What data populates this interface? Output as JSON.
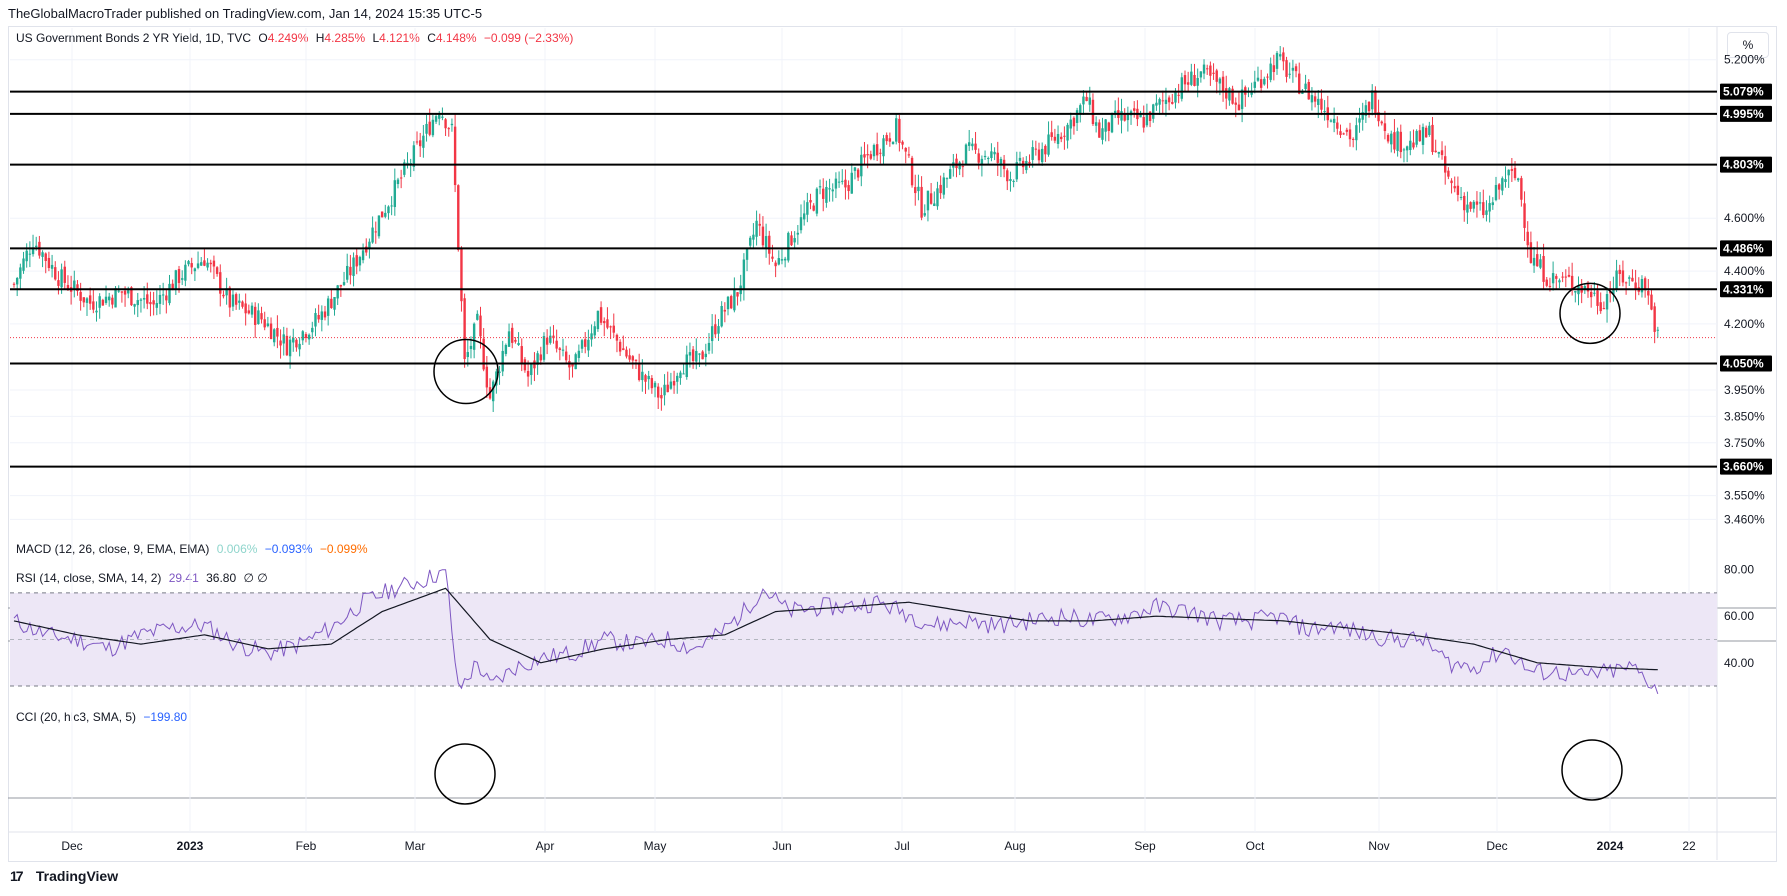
{
  "header": {
    "published": "TheGlobalMacroTrader published on TradingView.com, Jan 14, 2024 15:35 UTC-5"
  },
  "price_legend": {
    "symbol": "US Government Bonds 2 YR Yield, 1D, TVC",
    "o_label": "O",
    "o_value": "4.249%",
    "h_label": "H",
    "h_value": "4.285%",
    "l_label": "L",
    "l_value": "4.121%",
    "c_label": "C",
    "c_value": "4.148%",
    "change": "−0.099 (−2.33%)"
  },
  "scale_toggle": "%",
  "macd_legend": {
    "title": "MACD (12, 26, close, 9, EMA, EMA)",
    "hist": "0.006%",
    "macd": "−0.093%",
    "signal": "−0.099%"
  },
  "rsi_legend": {
    "title": "RSI (14, close, SMA, 14, 2)",
    "rsi": "29.41",
    "ma": "36.80",
    "extra": "∅ ∅"
  },
  "cci_legend": {
    "title": "CCI (20, hlc3, SMA, 5)",
    "value": "−199.80"
  },
  "footer": {
    "brand": "TradingView"
  },
  "colors": {
    "up": "#22ab94",
    "down": "#f23645",
    "rsi": "#7e57c2",
    "rsi_band": "#ede7f6",
    "level": "#000000"
  },
  "chart_data": [
    {
      "type": "candlestick",
      "title": "US Government Bonds 2 YR Yield, 1D, TVC",
      "x_ticks": [
        "Dec",
        "2023",
        "Feb",
        "Mar",
        "Apr",
        "May",
        "Jun",
        "Jul",
        "Aug",
        "Sep",
        "Oct",
        "Nov",
        "Dec",
        "2024",
        "22"
      ],
      "y_ticks": [
        "5.200%",
        "4.600%",
        "4.400%",
        "4.200%",
        "3.950%",
        "3.850%",
        "3.750%",
        "3.550%",
        "3.460%"
      ],
      "ylim": [
        3.42,
        5.32
      ],
      "levels": [
        "5.079%",
        "4.995%",
        "4.803%",
        "4.486%",
        "4.331%",
        "4.050%",
        "3.660%"
      ],
      "level_values": [
        5.079,
        4.995,
        4.803,
        4.486,
        4.331,
        4.05,
        3.66
      ],
      "last_price": 4.148,
      "path_anchors": [
        [
          0,
          4.35
        ],
        [
          6,
          4.52
        ],
        [
          14,
          4.38
        ],
        [
          24,
          4.28
        ],
        [
          34,
          4.32
        ],
        [
          44,
          4.27
        ],
        [
          52,
          4.38
        ],
        [
          60,
          4.45
        ],
        [
          68,
          4.28
        ],
        [
          78,
          4.22
        ],
        [
          86,
          4.12
        ],
        [
          96,
          4.22
        ],
        [
          106,
          4.4
        ],
        [
          116,
          4.62
        ],
        [
          126,
          4.84
        ],
        [
          134,
          5.02
        ],
        [
          138,
          4.93
        ],
        [
          140,
          4.5
        ],
        [
          142,
          4.05
        ],
        [
          146,
          4.2
        ],
        [
          150,
          3.92
        ],
        [
          156,
          4.18
        ],
        [
          162,
          4.0
        ],
        [
          168,
          4.15
        ],
        [
          176,
          4.02
        ],
        [
          184,
          4.24
        ],
        [
          192,
          4.1
        ],
        [
          198,
          4.0
        ],
        [
          204,
          3.92
        ],
        [
          210,
          4.05
        ],
        [
          216,
          4.06
        ],
        [
          222,
          4.22
        ],
        [
          228,
          4.32
        ],
        [
          234,
          4.58
        ],
        [
          240,
          4.42
        ],
        [
          246,
          4.55
        ],
        [
          254,
          4.7
        ],
        [
          262,
          4.72
        ],
        [
          270,
          4.85
        ],
        [
          278,
          4.94
        ],
        [
          282,
          4.8
        ],
        [
          286,
          4.64
        ],
        [
          292,
          4.72
        ],
        [
          300,
          4.85
        ],
        [
          308,
          4.84
        ],
        [
          314,
          4.76
        ],
        [
          320,
          4.82
        ],
        [
          326,
          4.88
        ],
        [
          332,
          4.95
        ],
        [
          338,
          5.05
        ],
        [
          342,
          4.92
        ],
        [
          348,
          4.98
        ],
        [
          356,
          4.97
        ],
        [
          362,
          5.04
        ],
        [
          368,
          5.1
        ],
        [
          374,
          5.15
        ],
        [
          380,
          5.1
        ],
        [
          386,
          5.04
        ],
        [
          392,
          5.12
        ],
        [
          398,
          5.2
        ],
        [
          404,
          5.12
        ],
        [
          410,
          5.05
        ],
        [
          416,
          4.98
        ],
        [
          422,
          4.9
        ],
        [
          428,
          5.06
        ],
        [
          434,
          4.9
        ],
        [
          440,
          4.88
        ],
        [
          446,
          4.92
        ],
        [
          452,
          4.74
        ],
        [
          458,
          4.65
        ],
        [
          464,
          4.62
        ],
        [
          470,
          4.76
        ],
        [
          474,
          4.75
        ],
        [
          478,
          4.45
        ],
        [
          484,
          4.37
        ],
        [
          490,
          4.36
        ],
        [
          496,
          4.33
        ],
        [
          500,
          4.28
        ],
        [
          506,
          4.38
        ],
        [
          510,
          4.36
        ],
        [
          514,
          4.35
        ],
        [
          518,
          4.15
        ]
      ]
    },
    {
      "type": "line",
      "title": "RSI (14, close, SMA, 14, 2)",
      "y_ticks": [
        "80.00",
        "60.00",
        "40.00"
      ],
      "ylim": [
        24,
        82
      ],
      "band": [
        30,
        70
      ],
      "midline": 50,
      "series": [
        {
          "name": "RSI"
        },
        {
          "name": "RSI-based MA"
        }
      ],
      "rsi_anchors": [
        [
          0,
          58
        ],
        [
          10,
          52
        ],
        [
          20,
          50
        ],
        [
          30,
          46
        ],
        [
          40,
          52
        ],
        [
          50,
          55
        ],
        [
          60,
          56
        ],
        [
          70,
          48
        ],
        [
          80,
          44
        ],
        [
          90,
          48
        ],
        [
          100,
          55
        ],
        [
          110,
          66
        ],
        [
          120,
          72
        ],
        [
          130,
          76
        ],
        [
          136,
          80
        ],
        [
          140,
          28
        ],
        [
          146,
          40
        ],
        [
          150,
          30
        ],
        [
          158,
          38
        ],
        [
          166,
          42
        ],
        [
          176,
          44
        ],
        [
          186,
          50
        ],
        [
          196,
          48
        ],
        [
          206,
          50
        ],
        [
          214,
          46
        ],
        [
          222,
          52
        ],
        [
          230,
          62
        ],
        [
          236,
          72
        ],
        [
          244,
          62
        ],
        [
          254,
          64
        ],
        [
          262,
          64
        ],
        [
          272,
          66
        ],
        [
          280,
          62
        ],
        [
          290,
          56
        ],
        [
          300,
          58
        ],
        [
          310,
          56
        ],
        [
          320,
          58
        ],
        [
          330,
          60
        ],
        [
          340,
          58
        ],
        [
          350,
          60
        ],
        [
          360,
          64
        ],
        [
          370,
          62
        ],
        [
          380,
          58
        ],
        [
          390,
          58
        ],
        [
          398,
          60
        ],
        [
          408,
          54
        ],
        [
          416,
          56
        ],
        [
          426,
          52
        ],
        [
          436,
          50
        ],
        [
          444,
          50
        ],
        [
          452,
          40
        ],
        [
          460,
          38
        ],
        [
          470,
          46
        ],
        [
          478,
          36
        ],
        [
          486,
          36
        ],
        [
          494,
          34
        ],
        [
          502,
          36
        ],
        [
          510,
          38
        ],
        [
          518,
          29
        ]
      ],
      "ma_anchors": [
        [
          0,
          58
        ],
        [
          20,
          52
        ],
        [
          40,
          48
        ],
        [
          60,
          52
        ],
        [
          80,
          46
        ],
        [
          100,
          48
        ],
        [
          116,
          62
        ],
        [
          136,
          72
        ],
        [
          150,
          50
        ],
        [
          166,
          40
        ],
        [
          186,
          46
        ],
        [
          206,
          50
        ],
        [
          224,
          52
        ],
        [
          240,
          62
        ],
        [
          262,
          64
        ],
        [
          282,
          66
        ],
        [
          300,
          62
        ],
        [
          320,
          58
        ],
        [
          340,
          58
        ],
        [
          360,
          60
        ],
        [
          380,
          59
        ],
        [
          400,
          58
        ],
        [
          420,
          55
        ],
        [
          440,
          52
        ],
        [
          460,
          48
        ],
        [
          480,
          40
        ],
        [
          500,
          38
        ],
        [
          518,
          37
        ]
      ]
    }
  ]
}
